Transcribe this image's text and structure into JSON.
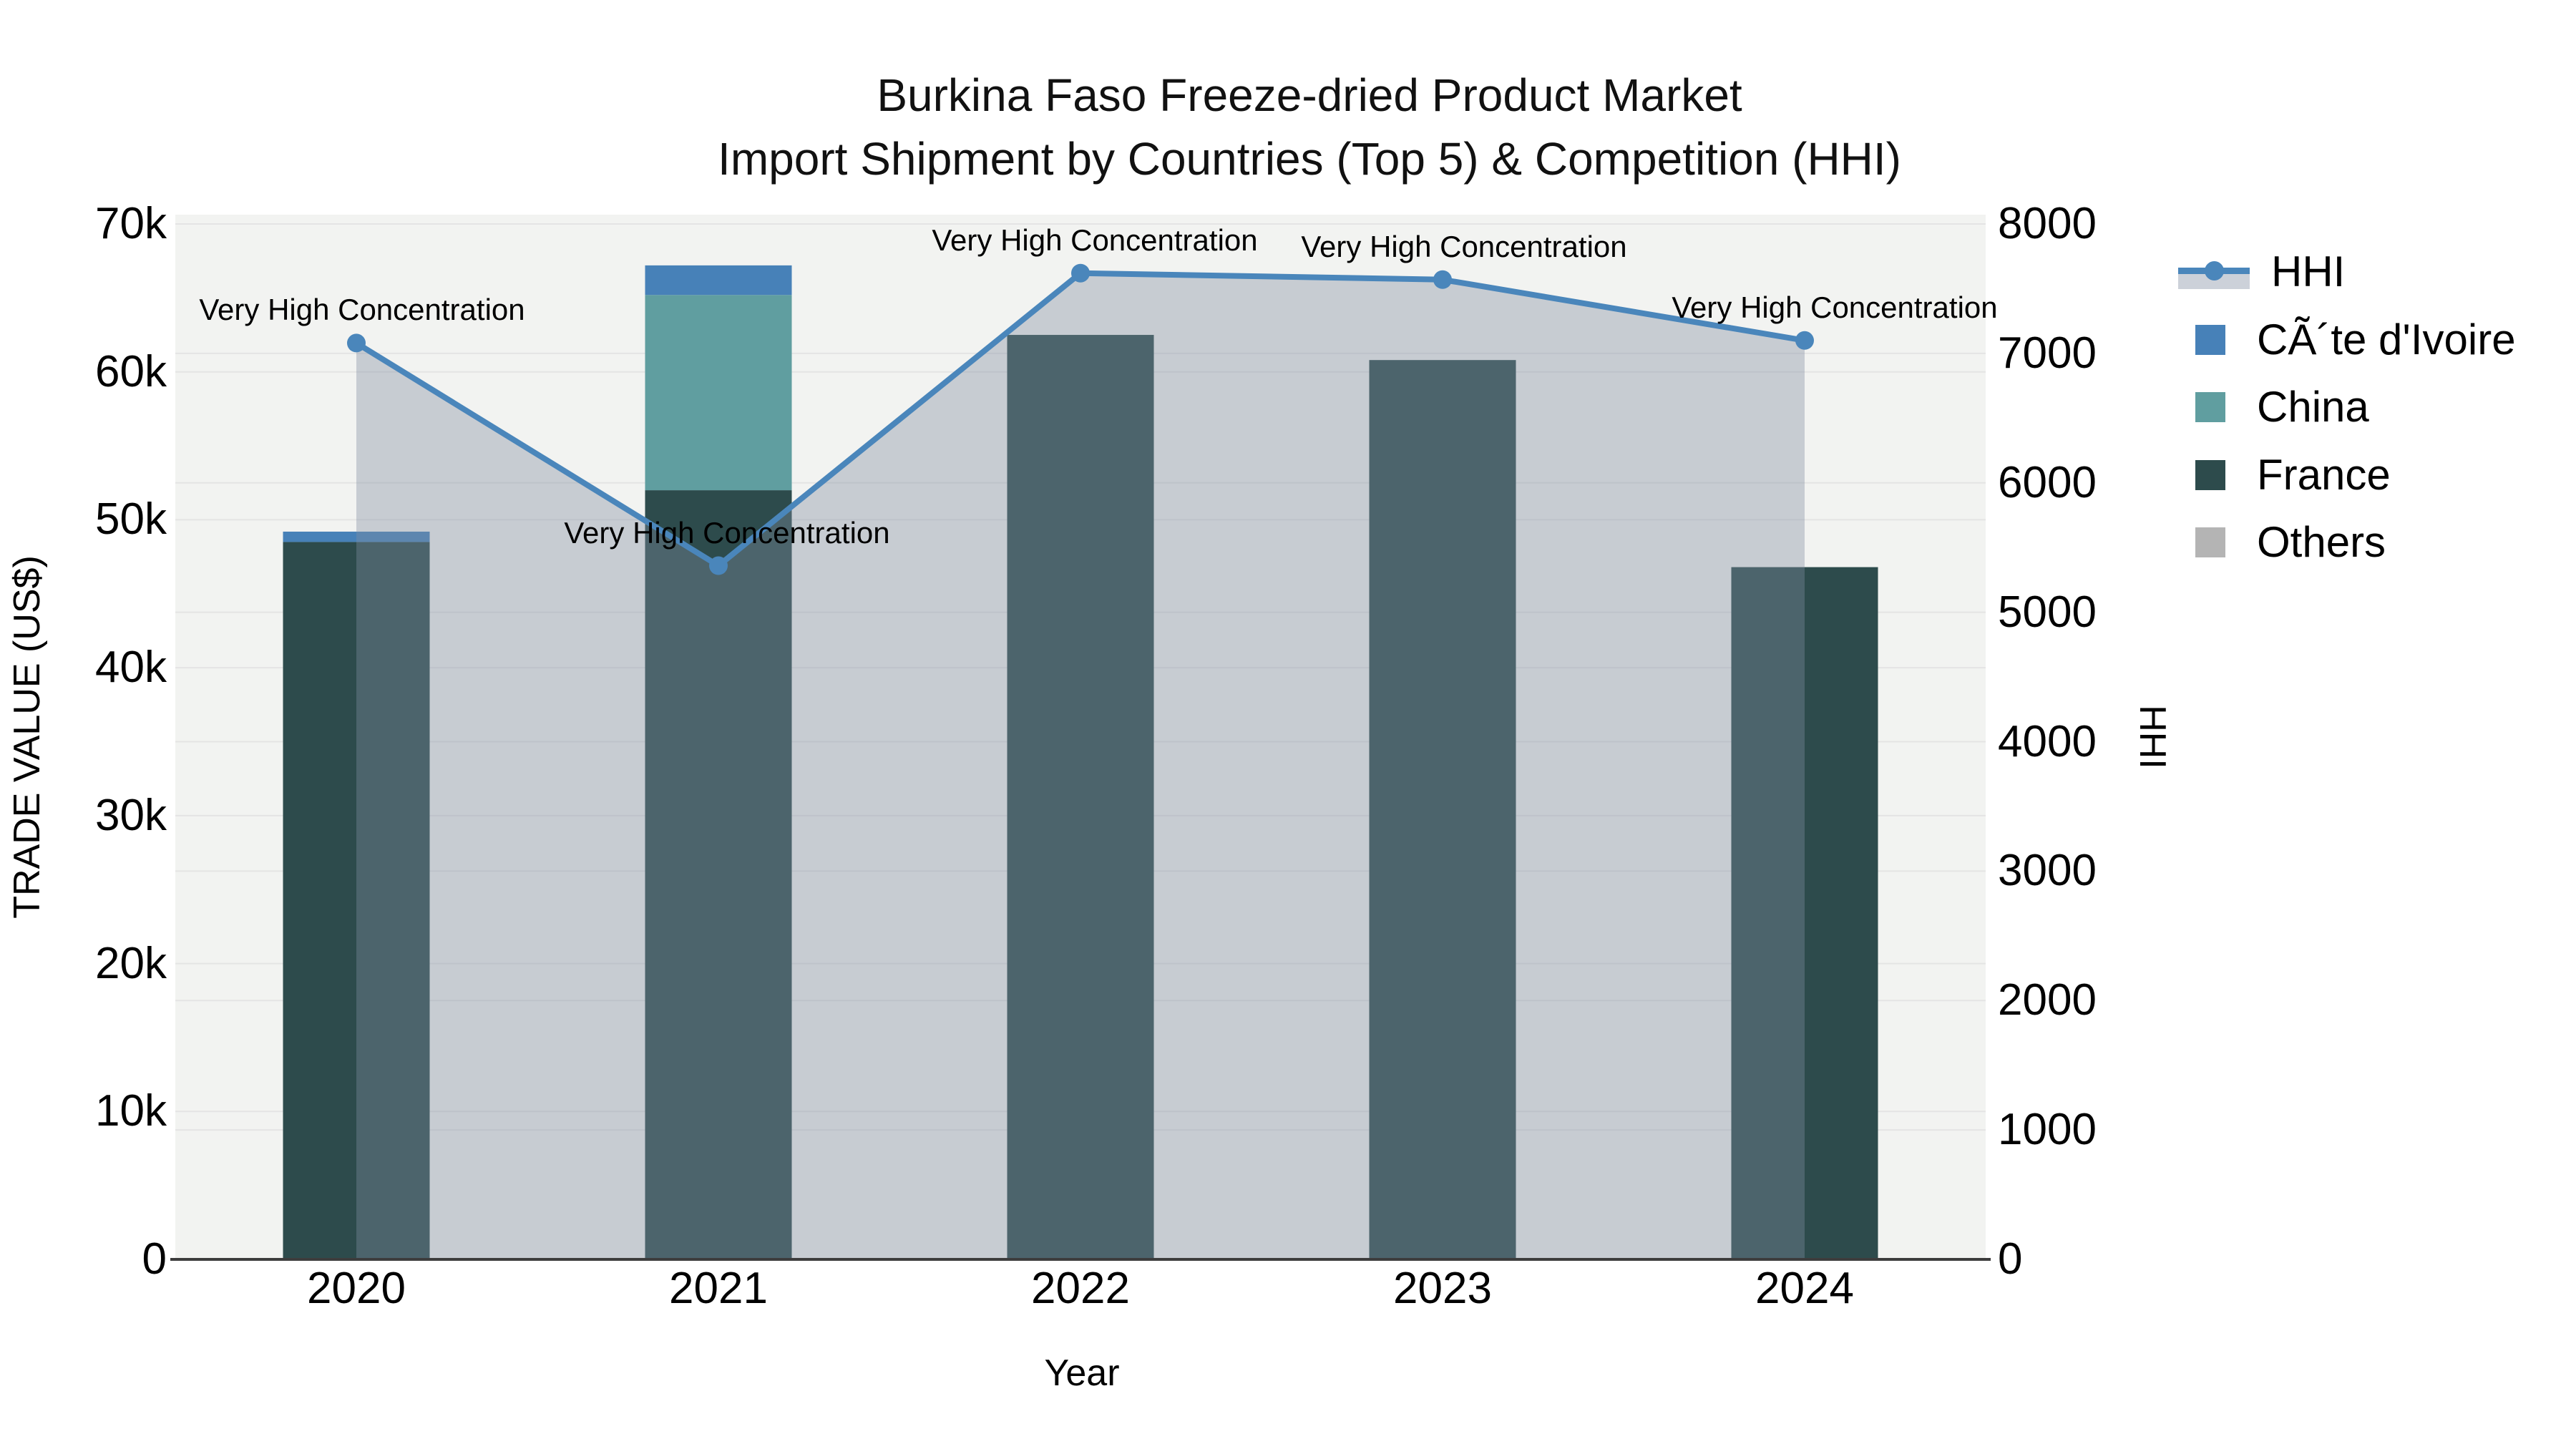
{
  "title": {
    "line1": "Burkina Faso Freeze-dried Product Market",
    "line2": "Import Shipment by Countries (Top 5) & Competition (HHI)"
  },
  "axes": {
    "left": {
      "title": "TRADE VALUE (US$)",
      "tick_labels": [
        "0",
        "10k",
        "20k",
        "30k",
        "40k",
        "50k",
        "60k",
        "70k"
      ],
      "range": [
        0,
        70000
      ]
    },
    "right": {
      "title": "HHI",
      "tick_labels": [
        "0",
        "1000",
        "2000",
        "3000",
        "4000",
        "5000",
        "6000",
        "7000",
        "8000"
      ],
      "range": [
        0,
        8000
      ]
    },
    "x": {
      "title": "Year",
      "tick_labels": [
        "2020",
        "2021",
        "2022",
        "2023",
        "2024"
      ]
    }
  },
  "legend": {
    "items": [
      {
        "label": "HHI",
        "type": "line",
        "color": "#4a86bb",
        "area_color": "#ccd1d9"
      },
      {
        "label": "CÃ´te d'Ivoire",
        "type": "square",
        "color": "#4781b8"
      },
      {
        "label": "China",
        "type": "square",
        "color": "#609ea0"
      },
      {
        "label": "France",
        "type": "square",
        "color": "#2d4b4c"
      },
      {
        "label": "Others",
        "type": "square",
        "color": "#b4b4b4"
      }
    ]
  },
  "chart_data": {
    "type": "combo: stacked bar (left axis) + line with area fill (right axis)",
    "title": "Burkina Faso Freeze-dried Product Market — Import Shipment by Countries (Top 5) & Competition (HHI)",
    "categories": [
      "2020",
      "2021",
      "2022",
      "2023",
      "2024"
    ],
    "bar_series": [
      {
        "name": "CÃ´te d'Ivoire",
        "color": "#4781b8",
        "values": [
          700,
          2000,
          0,
          0,
          0
        ]
      },
      {
        "name": "China",
        "color": "#609ea0",
        "values": [
          0,
          13200,
          0,
          0,
          0
        ]
      },
      {
        "name": "France",
        "color": "#2d4b4c",
        "values": [
          48500,
          52000,
          62500,
          60800,
          46800
        ]
      },
      {
        "name": "Others",
        "color": "#b4b4b4",
        "values": [
          0,
          0,
          0,
          0,
          0
        ]
      }
    ],
    "bar_totals": [
      49200,
      67200,
      62500,
      60800,
      46800
    ],
    "line_series": {
      "name": "HHI",
      "axis": "right",
      "color": "#4a86bb",
      "fill": "rgba(129,142,160,0.38)",
      "values": [
        7080,
        5360,
        7620,
        7570,
        7100
      ]
    },
    "point_annotations": [
      "Very High Concentration",
      "Very High Concentration",
      "Very High Concentration",
      "Very High Concentration",
      "Very High Concentration"
    ],
    "xlabel": "Year",
    "ylabel_left": "TRADE VALUE (US$)",
    "ylabel_right": "HHI",
    "ylim_left": [
      0,
      70000
    ],
    "ylim_right": [
      0,
      8000
    ],
    "grid": true,
    "legend_position": "right",
    "stack_order_bottom_to_top": [
      "Others",
      "France",
      "China",
      "CÃ´te d'Ivoire"
    ]
  },
  "colors": {
    "plot_bg": "#f2f3f1",
    "figure_bg": "#ffffff",
    "grid": "#e4e4e4",
    "axis_line": "#3d3d3d",
    "text": "#000000"
  }
}
